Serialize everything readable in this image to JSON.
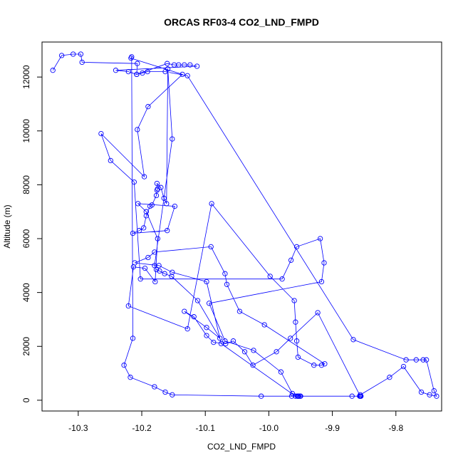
{
  "chart_data": {
    "type": "line",
    "title": "ORCAS RF03-4 CO2_LND_FMPD",
    "xlabel": "CO2_LND_FMPD",
    "ylabel": "Altitude (m)",
    "xlim": [
      -10.357,
      -9.728
    ],
    "ylim": [
      -400,
      13300
    ],
    "xticks": [
      -10.3,
      -10.2,
      -10.1,
      -10.0,
      -9.9,
      -9.8
    ],
    "xtick_labels": [
      "-10.3",
      "-10.2",
      "-10.1",
      "-10.0",
      "-9.9",
      "-9.8"
    ],
    "yticks": [
      0,
      2000,
      4000,
      6000,
      8000,
      10000,
      12000
    ],
    "ytick_labels": [
      "0",
      "2000",
      "4000",
      "6000",
      "8000",
      "10000",
      "12000"
    ],
    "grid": false,
    "legend": "none",
    "color": "#0000ff",
    "series": [
      {
        "x": [
          -10.34,
          -10.326,
          -10.308,
          -10.296,
          -10.294,
          -10.207,
          -10.208,
          -10.16,
          -10.149,
          -10.142,
          -10.133,
          -10.124,
          -10.113,
          -10.241,
          -10.221,
          -10.208,
          -10.199,
          -10.191,
          -10.163,
          -10.128,
          -9.867,
          -9.784,
          -9.768,
          -9.757,
          -9.752,
          -9.74,
          -9.736,
          -9.747,
          -9.76,
          -9.788,
          -9.81,
          -9.856,
          -9.856,
          -9.856,
          -9.856,
          -9.923,
          -9.966,
          -9.988,
          -10.025,
          -10.038,
          -10.056,
          -10.068,
          -10.087,
          -10.098,
          -10.118,
          -10.133,
          -10.098,
          -10.077,
          -10.112,
          -10.153,
          -10.164,
          -10.172,
          -10.177,
          -10.18,
          -10.152,
          -10.159,
          -10.161,
          -10.165,
          -10.17,
          -10.176,
          -10.175,
          -10.176,
          -10.177,
          -10.184,
          -10.187,
          -10.193,
          -10.197,
          -10.204,
          -10.214,
          -10.16,
          -10.148,
          -10.206,
          -10.193,
          -10.175,
          -10.179,
          -10.195,
          -10.213,
          -10.221,
          -10.128,
          -10.09,
          -9.998,
          -9.96,
          -9.958,
          -9.956,
          -9.954,
          -9.929,
          -9.917,
          -9.912,
          -10.007,
          -10.046,
          -10.066,
          -10.069,
          -10.091,
          -10.18,
          -10.19,
          -10.211,
          -10.173,
          -10.152,
          -10.098,
          -10.075,
          -9.958,
          -9.955,
          -9.954,
          -9.95,
          -9.963,
          -9.981,
          -10.024,
          -10.069,
          -10.094,
          -9.917,
          -9.913,
          -9.919,
          -9.956,
          -9.965,
          -9.979,
          -10.202,
          -10.212,
          -10.249,
          -10.264,
          -10.196,
          -10.207,
          -10.19,
          -10.136,
          -10.217,
          -10.216,
          -10.214,
          -10.228,
          -10.218,
          -10.18,
          -10.163,
          -10.152,
          -10.012,
          -9.964,
          -9.953,
          -9.951,
          -9.869,
          -9.857,
          -9.856,
          -9.855
        ],
        "y": [
          12250,
          12800,
          12850,
          12850,
          12550,
          12500,
          12100,
          12500,
          12450,
          12450,
          12450,
          12450,
          12400,
          12250,
          12200,
          12100,
          12150,
          12200,
          12200,
          12050,
          2250,
          1500,
          1500,
          1500,
          1500,
          350,
          150,
          200,
          300,
          1250,
          850,
          200,
          150,
          150,
          150,
          3250,
          2300,
          1800,
          1300,
          1800,
          2200,
          2100,
          2150,
          2400,
          3100,
          3300,
          2700,
          2300,
          3700,
          4600,
          4700,
          4800,
          4850,
          5000,
          9700,
          12300,
          7300,
          7500,
          7900,
          8050,
          7850,
          7800,
          7600,
          7250,
          7200,
          6850,
          6400,
          6300,
          6200,
          6300,
          7200,
          7300,
          7000,
          6000,
          4400,
          4900,
          4950,
          3500,
          2650,
          7300,
          4600,
          3700,
          2900,
          2200,
          1600,
          1300,
          1300,
          1350,
          2800,
          3300,
          4300,
          4700,
          5700,
          5500,
          5300,
          5100,
          5000,
          4750,
          4400,
          2100,
          150,
          150,
          150,
          150,
          250,
          1050,
          1850,
          2200,
          3600,
          4400,
          5100,
          6000,
          5700,
          5200,
          4500,
          4500,
          8100,
          8900,
          9900,
          8300,
          10050,
          10900,
          12100,
          12700,
          12750,
          2300,
          1300,
          850,
          500,
          300,
          200,
          150,
          150,
          150,
          150,
          150,
          150,
          150,
          150
        ]
      }
    ]
  }
}
